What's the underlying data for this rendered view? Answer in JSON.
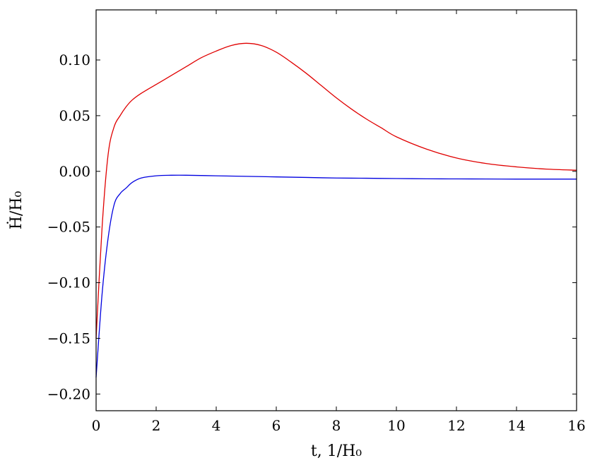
{
  "chart_data": {
    "type": "line",
    "title": "",
    "xlabel": "t, 1/H₀",
    "ylabel": "Ḣ/H₀",
    "xlim": [
      0,
      16
    ],
    "ylim": [
      -0.215,
      0.145
    ],
    "xticks": [
      0,
      2,
      4,
      6,
      8,
      10,
      12,
      14,
      16
    ],
    "xtick_labels": [
      "0",
      "2",
      "4",
      "6",
      "8",
      "10",
      "12",
      "14",
      "16"
    ],
    "yticks": [
      -0.2,
      -0.15,
      -0.1,
      -0.05,
      0.0,
      0.05,
      0.1
    ],
    "ytick_labels": [
      "−0.20",
      "−0.15",
      "−0.10",
      "−0.05",
      "0.00",
      "0.05",
      "0.10"
    ],
    "grid": false,
    "series": [
      {
        "color": "#e00000",
        "x": [
          0,
          0.2,
          0.4,
          0.6,
          0.8,
          1.0,
          1.2,
          1.5,
          2.0,
          2.5,
          3.0,
          3.5,
          4.0,
          4.5,
          5.0,
          5.5,
          6.0,
          6.5,
          7.0,
          7.5,
          8.0,
          8.5,
          9.0,
          9.5,
          10.0,
          11.0,
          12.0,
          13.0,
          14.0,
          15.0,
          16.0
        ],
        "y": [
          -0.15,
          -0.05,
          0.015,
          0.04,
          0.05,
          0.058,
          0.064,
          0.07,
          0.078,
          0.086,
          0.094,
          0.102,
          0.108,
          0.113,
          0.115,
          0.113,
          0.107,
          0.098,
          0.088,
          0.077,
          0.066,
          0.056,
          0.047,
          0.039,
          0.031,
          0.02,
          0.012,
          0.007,
          0.004,
          0.002,
          0.001
        ]
      },
      {
        "color": "#0000e0",
        "x": [
          0,
          0.2,
          0.4,
          0.6,
          0.8,
          1.0,
          1.2,
          1.5,
          2.0,
          2.5,
          3.0,
          4.0,
          5.0,
          6.0,
          7.0,
          8.0,
          9.0,
          10.0,
          11.0,
          12.0,
          13.0,
          14.0,
          15.0,
          16.0
        ],
        "y": [
          -0.185,
          -0.11,
          -0.06,
          -0.03,
          -0.02,
          -0.015,
          -0.01,
          -0.006,
          -0.004,
          -0.0035,
          -0.0035,
          -0.004,
          -0.0045,
          -0.005,
          -0.0055,
          -0.006,
          -0.0062,
          -0.0065,
          -0.0067,
          -0.0068,
          -0.0069,
          -0.007,
          -0.007,
          -0.007
        ]
      }
    ]
  }
}
